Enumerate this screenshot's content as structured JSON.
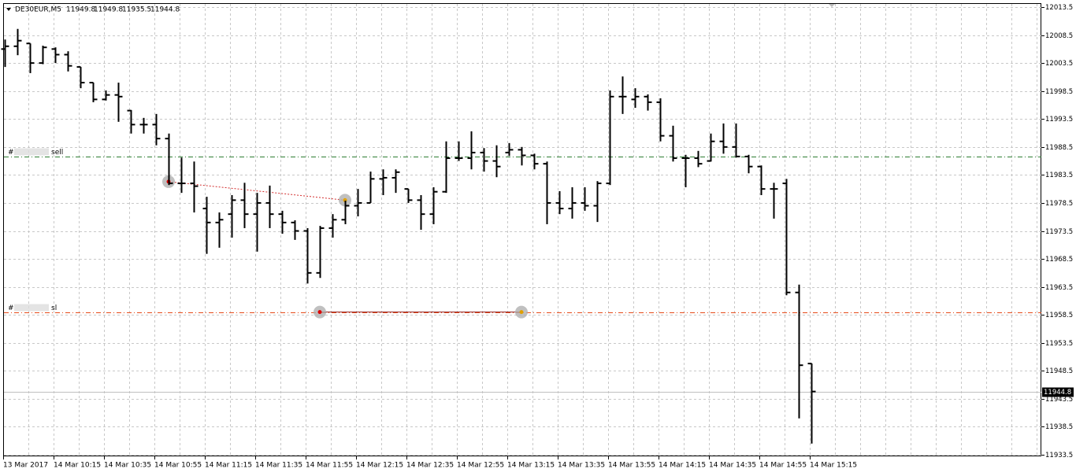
{
  "chart_data": {
    "type": "ohlc",
    "symbol": "DE30EUR,M5",
    "categories": [
      "13 Mar 2017",
      null,
      null,
      null,
      "14 Mar 10:15",
      null,
      null,
      null,
      "14 Mar 10:35",
      null,
      null,
      null,
      "14 Mar 10:55",
      null,
      null,
      null,
      "14 Mar 11:15",
      null,
      null,
      null,
      "14 Mar 11:35",
      null,
      null,
      null,
      "14 Mar 11:55",
      null,
      null,
      null,
      "14 Mar 12:15",
      null,
      null,
      null,
      "14 Mar 12:35",
      null,
      null,
      null,
      "14 Mar 12:55",
      null,
      null,
      null,
      "14 Mar 13:15",
      null,
      null,
      null,
      "14 Mar 13:35",
      null,
      null,
      null,
      "14 Mar 13:55",
      null,
      null,
      null,
      "14 Mar 14:15",
      null,
      null,
      null,
      "14 Mar 14:35",
      null,
      null,
      null,
      "14 Mar 14:55",
      null,
      null,
      null,
      "14 Mar 15:15"
    ],
    "open": [
      12006.0,
      12006.5,
      12007.0,
      12003.5,
      12006.0,
      12005.0,
      12002.8,
      12000.0,
      11997.0,
      11997.8,
      11995.0,
      11992.5,
      11992.5,
      11990.0,
      11982.0,
      11982.0,
      11977.5,
      11975.0,
      11976.5,
      11979.0,
      11976.5,
      11978.5,
      11976.5,
      11975.0,
      11973.5,
      11966.0,
      11974.0,
      11975.5,
      11978.0,
      11978.5,
      11982.8,
      11983.0,
      11981.0,
      11979.0,
      11976.5,
      11980.5,
      11986.5,
      11986.5,
      11987.5,
      11986.0,
      11987.5,
      11988.0,
      11987.0,
      11985.5,
      11978.5,
      11977.5,
      11978.5,
      11978.0,
      11982.0,
      11997.5,
      11997.0,
      11997.5,
      11996.5,
      11990.5,
      11986.5,
      11986.5,
      11986.0,
      11989.5,
      11988.5,
      11986.8,
      11985.0,
      11981.0,
      11982.0,
      11962.5,
      11949.8
    ],
    "high": [
      12007.7,
      12009.6,
      12007.0,
      12006.6,
      12006.3,
      12005.6,
      12002.8,
      12000.0,
      11998.6,
      12000.0,
      11995.1,
      11993.7,
      11994.4,
      11990.9,
      11986.6,
      11985.9,
      11979.6,
      11976.8,
      11979.9,
      11982.1,
      11980.3,
      11981.6,
      11977.1,
      11975.4,
      11974.0,
      11974.4,
      11976.5,
      11978.9,
      11981.0,
      11984.1,
      11984.5,
      11984.5,
      11981.0,
      11979.9,
      11981.3,
      11989.5,
      11989.5,
      11991.3,
      11988.3,
      11988.8,
      11989.2,
      11988.5,
      11987.3,
      11985.9,
      11980.6,
      11981.3,
      11981.3,
      11982.4,
      11998.6,
      12001.1,
      11999.0,
      11997.9,
      11997.2,
      11992.3,
      11987.1,
      11987.8,
      11990.9,
      11992.7,
      11992.7,
      11987.1,
      11985.2,
      11982.1,
      11982.8,
      11963.9,
      11949.8
    ],
    "low": [
      12002.8,
      12004.9,
      12001.7,
      12003.3,
      12003.5,
      12002.0,
      11999.0,
      11996.5,
      11996.8,
      11993.0,
      11990.9,
      11990.9,
      11988.8,
      11981.7,
      11980.3,
      11976.8,
      11969.4,
      11970.5,
      11972.3,
      11974.0,
      11969.8,
      11974.0,
      11973.0,
      11971.9,
      11964.1,
      11965.1,
      11972.3,
      11974.7,
      11976.1,
      11978.5,
      11979.9,
      11980.3,
      11978.5,
      11973.7,
      11974.7,
      11980.3,
      11986.0,
      11984.5,
      11984.1,
      11983.1,
      11986.9,
      11985.2,
      11984.5,
      11974.7,
      11976.5,
      11975.7,
      11977.1,
      11975.1,
      11981.7,
      11994.4,
      11995.5,
      11995.0,
      11989.5,
      11985.9,
      11981.3,
      11984.9,
      11985.9,
      11987.3,
      11986.6,
      11983.8,
      11979.9,
      11975.7,
      11962.0,
      11940.0,
      11935.5
    ],
    "close": [
      12006.5,
      12007.5,
      12003.5,
      12006.3,
      12005.0,
      12003.0,
      12000.0,
      11997.0,
      11997.8,
      11997.5,
      11992.5,
      11992.5,
      11990.0,
      11982.0,
      11982.0,
      11981.5,
      11975.0,
      11975.5,
      11979.0,
      11976.5,
      11978.5,
      11976.5,
      11975.0,
      11973.5,
      11966.0,
      11974.0,
      11975.5,
      11978.0,
      11978.5,
      11982.8,
      11983.0,
      11984.0,
      11979.0,
      11976.5,
      11980.5,
      11986.5,
      11986.5,
      11987.5,
      11986.0,
      11985.0,
      11988.0,
      11987.0,
      11985.5,
      11978.5,
      11977.5,
      11978.5,
      11978.0,
      11982.0,
      11997.5,
      11997.5,
      11997.5,
      11996.5,
      11990.5,
      11986.5,
      11986.5,
      11985.5,
      11989.5,
      11988.5,
      11986.8,
      11985.0,
      11981.0,
      11981.0,
      11962.5,
      11949.5,
      11944.8
    ],
    "color": "#000000",
    "ylim": [
      11933.5,
      12013.5
    ],
    "yticks": [
      12013.5,
      12008.5,
      12003.5,
      11998.5,
      11993.5,
      11988.5,
      11983.5,
      11978.5,
      11973.5,
      11968.5,
      11963.5,
      11958.5,
      11953.5,
      11948.5,
      11943.5,
      11938.5,
      11933.5
    ],
    "grid": true,
    "levels": [
      {
        "tag": "#",
        "label": "sell",
        "value": 11986.8,
        "color": "#2e7d32"
      },
      {
        "tag": "#",
        "label": "sl",
        "value": 11959.0,
        "color": "#e64a19"
      }
    ],
    "trades": [
      {
        "open": {
          "index": 13,
          "price": 11982.3
        },
        "close": {
          "index": 27,
          "price": 11979.0
        },
        "color": "#d32f2f"
      },
      {
        "open": {
          "index": 25,
          "price": 11959.0
        },
        "close": {
          "index": 41,
          "price": 11959.0
        },
        "color": "#8b1a1a"
      }
    ]
  }
}
